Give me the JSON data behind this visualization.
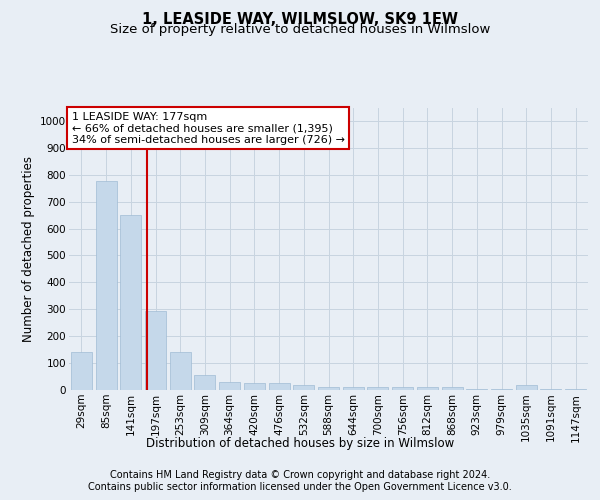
{
  "title": "1, LEASIDE WAY, WILMSLOW, SK9 1EW",
  "subtitle": "Size of property relative to detached houses in Wilmslow",
  "xlabel": "Distribution of detached houses by size in Wilmslow",
  "ylabel": "Number of detached properties",
  "categories": [
    "29sqm",
    "85sqm",
    "141sqm",
    "197sqm",
    "253sqm",
    "309sqm",
    "364sqm",
    "420sqm",
    "476sqm",
    "532sqm",
    "588sqm",
    "644sqm",
    "700sqm",
    "756sqm",
    "812sqm",
    "868sqm",
    "923sqm",
    "979sqm",
    "1035sqm",
    "1091sqm",
    "1147sqm"
  ],
  "values": [
    140,
    775,
    650,
    295,
    140,
    55,
    30,
    25,
    25,
    18,
    10,
    10,
    10,
    10,
    10,
    10,
    2,
    2,
    18,
    2,
    2
  ],
  "bar_color": "#c5d8ea",
  "bar_edge_color": "#a0bcd4",
  "vline_x": 2.67,
  "vline_color": "#cc0000",
  "annotation_text": "1 LEASIDE WAY: 177sqm\n← 66% of detached houses are smaller (1,395)\n34% of semi-detached houses are larger (726) →",
  "annotation_box_color": "#ffffff",
  "annotation_box_edge": "#cc0000",
  "ylim": [
    0,
    1050
  ],
  "yticks": [
    0,
    100,
    200,
    300,
    400,
    500,
    600,
    700,
    800,
    900,
    1000
  ],
  "footer_line1": "Contains HM Land Registry data © Crown copyright and database right 2024.",
  "footer_line2": "Contains public sector information licensed under the Open Government Licence v3.0.",
  "bg_color": "#e8eef5",
  "plot_bg_color": "#e8eef5",
  "grid_color": "#c8d4e0",
  "title_fontsize": 10.5,
  "subtitle_fontsize": 9.5,
  "axis_label_fontsize": 8.5,
  "tick_fontsize": 7.5,
  "footer_fontsize": 7,
  "annotation_fontsize": 8
}
